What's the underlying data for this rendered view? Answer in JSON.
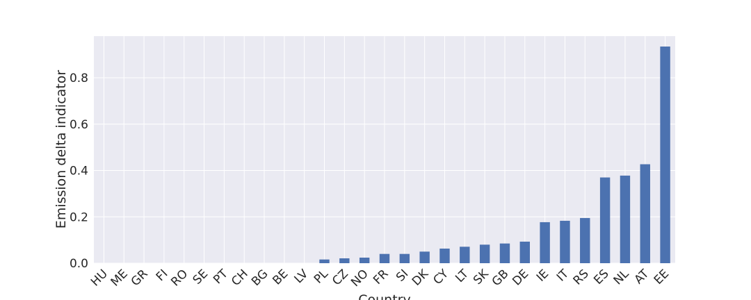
{
  "chart_data": {
    "type": "bar",
    "title": "",
    "xlabel": "Country",
    "ylabel": "Emission delta indicator",
    "ylim": [
      0,
      0.98
    ],
    "yticks": [
      0.0,
      0.2,
      0.4,
      0.6,
      0.8
    ],
    "ytick_labels": [
      "0.0",
      "0.2",
      "0.4",
      "0.6",
      "0.8"
    ],
    "grid": true,
    "legend": "none",
    "bar_color": "#4c72b0",
    "background_color": "#eaeaf2",
    "grid_color": "#ffffff",
    "categories": [
      "HU",
      "ME",
      "GR",
      "FI",
      "RO",
      "SE",
      "PT",
      "CH",
      "BG",
      "BE",
      "LV",
      "PL",
      "CZ",
      "NO",
      "FR",
      "SI",
      "DK",
      "CY",
      "LT",
      "SK",
      "GB",
      "DE",
      "IE",
      "IT",
      "RS",
      "ES",
      "NL",
      "AT",
      "EE"
    ],
    "values": [
      0,
      0,
      0,
      0,
      0,
      0,
      0,
      0,
      0,
      0,
      0,
      0.016,
      0.021,
      0.024,
      0.04,
      0.04,
      0.05,
      0.063,
      0.071,
      0.08,
      0.085,
      0.093,
      0.177,
      0.183,
      0.195,
      0.37,
      0.378,
      0.427,
      0.935
    ]
  }
}
